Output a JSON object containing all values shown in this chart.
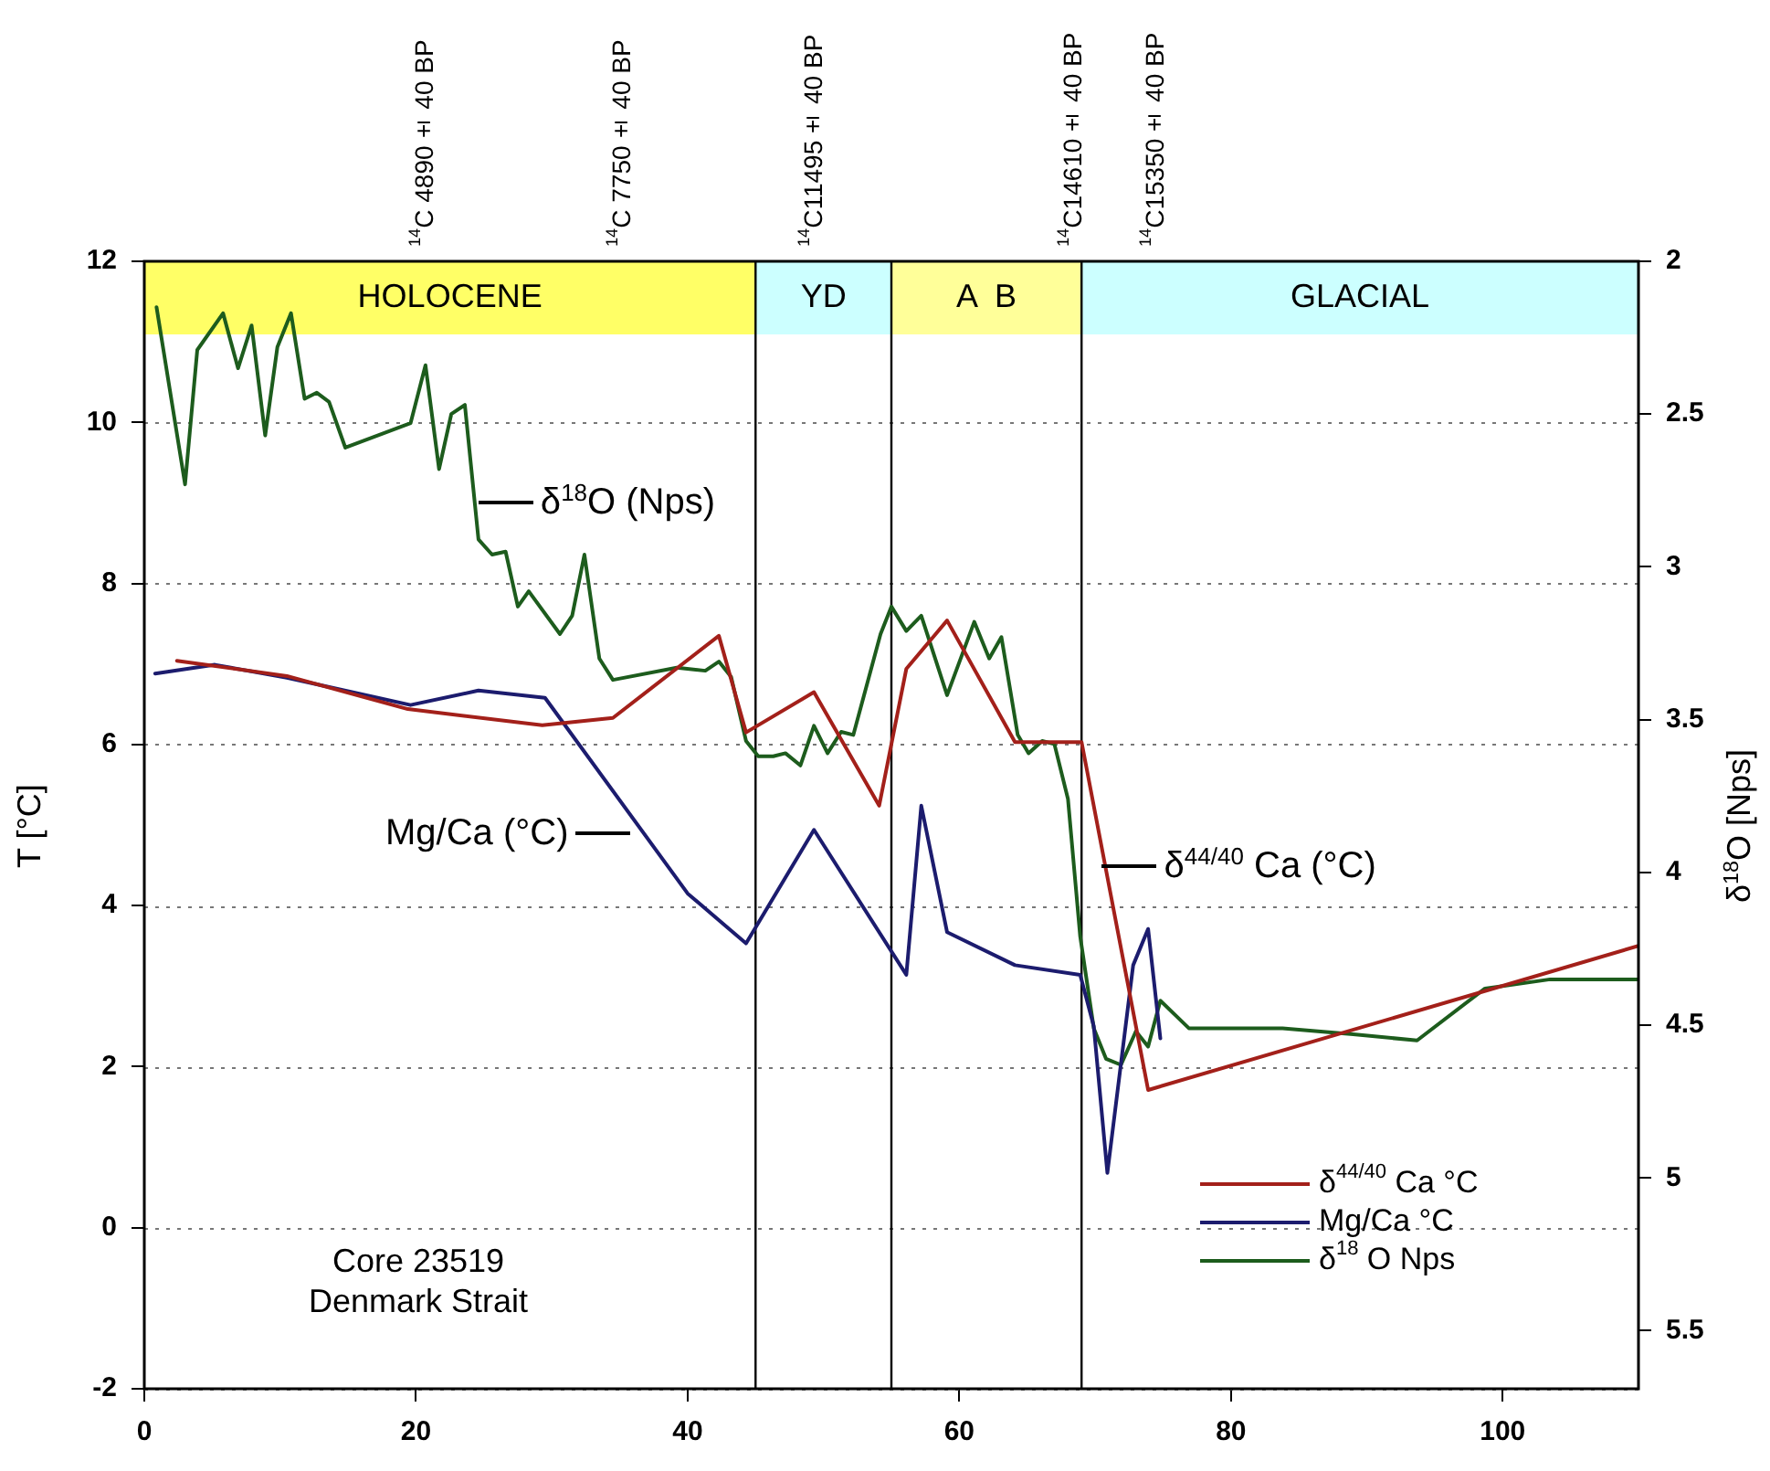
{
  "chart_data": {
    "type": "line",
    "ylabel": "T [°C]",
    "y2label": "δ$^{18}$O [Nps]",
    "xlim": [
      0,
      110
    ],
    "xticks": [
      0,
      20,
      40,
      60,
      80,
      100
    ],
    "ylim": [
      -2,
      12
    ],
    "yticks": [
      -2,
      0,
      2,
      4,
      6,
      8,
      10,
      12
    ],
    "y2lim": [
      5.69,
      2
    ],
    "y2ticks": [
      2,
      2.5,
      3,
      3.5,
      4,
      4.5,
      5,
      5.5
    ],
    "grid": "y",
    "legend": "bottom right",
    "bands": [
      {
        "axis": "x",
        "from": 0,
        "to": 45,
        "label": "HOLOCENE",
        "color": "#ffff66"
      },
      {
        "axis": "x",
        "from": 45,
        "to": 55,
        "label": "YD",
        "color": "#ccffff"
      },
      {
        "axis": "x",
        "from": 55,
        "to": 69,
        "label": "A  B",
        "color": "#ffff99"
      },
      {
        "axis": "x",
        "from": 69,
        "to": 110,
        "label": "GLACIAL",
        "color": "#ccffff"
      }
    ],
    "ref_lines": [
      {
        "axis": "x",
        "value": 45
      },
      {
        "axis": "x",
        "value": 55
      },
      {
        "axis": "x",
        "value": 69
      }
    ],
    "annotations": [
      "$^{14}$C 4890± 40 BP",
      "$^{14}$C 7750± 40 BP",
      "$^{14}$C11495± 40 BP",
      "$^{14}$C14610± 40 BP",
      "$^{14}$C15350± 40 BP",
      {
        "text": "δ$^{18}$O (Nps)",
        "x": 24.6,
        "y": 9.0
      },
      {
        "text": "Mg/Ca (°C)",
        "x": 35.8,
        "y": 4.9
      },
      {
        "text": "δ$^{44/40}$ Ca (°C)",
        "x": 70.5,
        "y": 4.49
      },
      "Core 23519\nDenmark Strait"
    ],
    "series": [
      {
        "name": "δ$^{44/40}$ Ca °C",
        "color": "#a3201a",
        "x": [
          2.4,
          10.5,
          19.4,
          29.3,
          34.5,
          42.3,
          44.3,
          49.3,
          54.1,
          56.1,
          59.1,
          64.1,
          69.0,
          73.9,
          110
        ],
        "values": [
          7.04,
          6.85,
          6.44,
          6.24,
          6.33,
          7.35,
          6.15,
          6.65,
          5.24,
          6.94,
          7.54,
          6.03,
          6.03,
          1.71,
          3.5
        ]
      },
      {
        "name": "Mg/Ca °C",
        "color": "#1c1c6e",
        "x": [
          0.8,
          5.2,
          10.5,
          19.6,
          24.6,
          29.5,
          40,
          44.3,
          49.3,
          56.1,
          57.2,
          59.1,
          64.1,
          68.9,
          69.9,
          70.9,
          72.8,
          73.9,
          74.8
        ],
        "values": [
          6.88,
          6.99,
          6.83,
          6.49,
          6.67,
          6.58,
          4.15,
          3.53,
          4.94,
          3.14,
          5.24,
          3.67,
          3.26,
          3.14,
          2.5,
          0.68,
          3.26,
          3.71,
          2.35
        ]
      },
      {
        "name": "δ$^{18}$ O Nps",
        "color": "#1d5c1d",
        "axis": "y2",
        "x": [
          0.9,
          3.0,
          3.9,
          5.8,
          6.9,
          7.9,
          8.9,
          9.8,
          10.8,
          11.8,
          12.7,
          13.6,
          14.8,
          19.6,
          20.7,
          21.7,
          22.6,
          23.6,
          24.6,
          25.6,
          26.6,
          27.5,
          28.3,
          30.6,
          31.5,
          32.4,
          33.5,
          34.5,
          39.2,
          41.3,
          42.3,
          43.2,
          44.3,
          45.2,
          46.3,
          47.2,
          48.3,
          49.3,
          50.3,
          51.3,
          52.2,
          54.2,
          55.0,
          56.1,
          57.2,
          59.1,
          61.1,
          62.2,
          63.1,
          64.3,
          65.1,
          66.1,
          67.0,
          68.0,
          68.9,
          69.9,
          70.8,
          71.9,
          73.0,
          73.9,
          74.8,
          76.9,
          83.8,
          89.0,
          93.7,
          98.7,
          103.5,
          110
        ],
        "values": [
          2.15,
          2.73,
          2.29,
          2.17,
          2.35,
          2.21,
          2.57,
          2.28,
          2.17,
          2.45,
          2.43,
          2.46,
          2.61,
          2.53,
          2.34,
          2.68,
          2.5,
          2.47,
          2.91,
          2.96,
          2.95,
          3.13,
          3.08,
          3.22,
          3.16,
          2.96,
          3.3,
          3.37,
          3.33,
          3.34,
          3.31,
          3.36,
          3.57,
          3.62,
          3.62,
          3.61,
          3.65,
          3.52,
          3.61,
          3.54,
          3.55,
          3.22,
          3.13,
          3.21,
          3.16,
          3.42,
          3.18,
          3.3,
          3.23,
          3.55,
          3.61,
          3.57,
          3.58,
          3.76,
          4.21,
          4.51,
          4.61,
          4.63,
          4.52,
          4.57,
          4.42,
          4.51,
          4.51,
          4.53,
          4.55,
          4.38,
          4.35,
          4.35
        ]
      }
    ]
  }
}
